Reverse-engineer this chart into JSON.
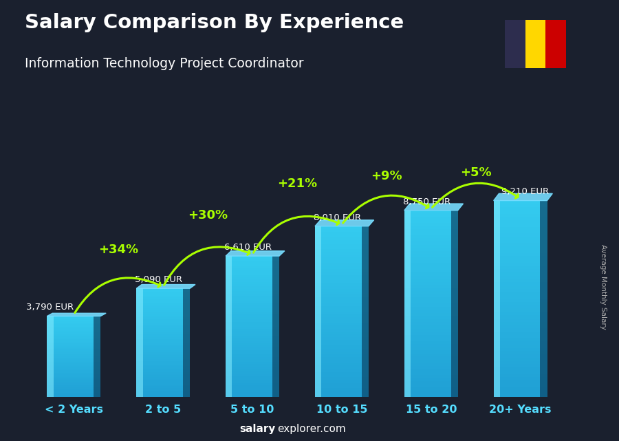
{
  "title": "Salary Comparison By Experience",
  "subtitle": "Information Technology Project Coordinator",
  "categories": [
    "< 2 Years",
    "2 to 5",
    "5 to 10",
    "10 to 15",
    "15 to 20",
    "20+ Years"
  ],
  "values": [
    3790,
    5090,
    6610,
    8010,
    8750,
    9210
  ],
  "labels": [
    "3,790 EUR",
    "5,090 EUR",
    "6,610 EUR",
    "8,010 EUR",
    "8,750 EUR",
    "9,210 EUR"
  ],
  "pct_changes": [
    "+34%",
    "+30%",
    "+21%",
    "+9%",
    "+5%"
  ],
  "bar_face_color": "#29b6e8",
  "bar_left_color": "#6dd8f7",
  "bar_right_color": "#1a7aaa",
  "bar_top_color": "#55ccee",
  "bg_color": "#1a202e",
  "title_color": "#ffffff",
  "subtitle_color": "#ffffff",
  "label_color": "#ffffff",
  "pct_color": "#aaff00",
  "cat_color": "#55ddff",
  "footer_salary_color": "#ffffff",
  "footer_explorer_color": "#ffffff",
  "side_label": "Average Monthly Salary",
  "footer_bold": "salary",
  "footer_regular": "explorer.com",
  "ylim": [
    0,
    12000
  ],
  "flag_black": "#2d2d4e",
  "flag_yellow": "#FFD700",
  "flag_red": "#cc0000"
}
